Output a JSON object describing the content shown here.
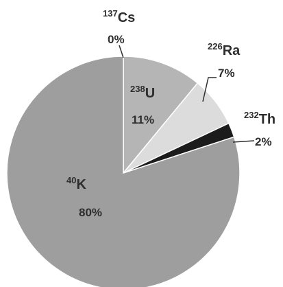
{
  "chart_data": {
    "type": "pie",
    "title": "",
    "start_angle_deg": 0,
    "direction": "clockwise",
    "slices": [
      {
        "mass": "137",
        "element": "Cs",
        "label": "0%",
        "value": 0,
        "color": "#9e9e9e"
      },
      {
        "mass": "238",
        "element": "U",
        "label": "11%",
        "value": 11,
        "color": "#b5b5b5"
      },
      {
        "mass": "226",
        "element": "Ra",
        "label": "7%",
        "value": 7,
        "color": "#dcdcdc"
      },
      {
        "mass": "232",
        "element": "Th",
        "label": "2%",
        "value": 2,
        "color": "#1c1c1c"
      },
      {
        "mass": "40",
        "element": "K",
        "label": "80%",
        "value": 80,
        "color": "#9e9e9e"
      }
    ],
    "legend": "none",
    "label_placement": "mixed (inside for U and K, outside with leader lines for Cs, Ra, Th)"
  }
}
